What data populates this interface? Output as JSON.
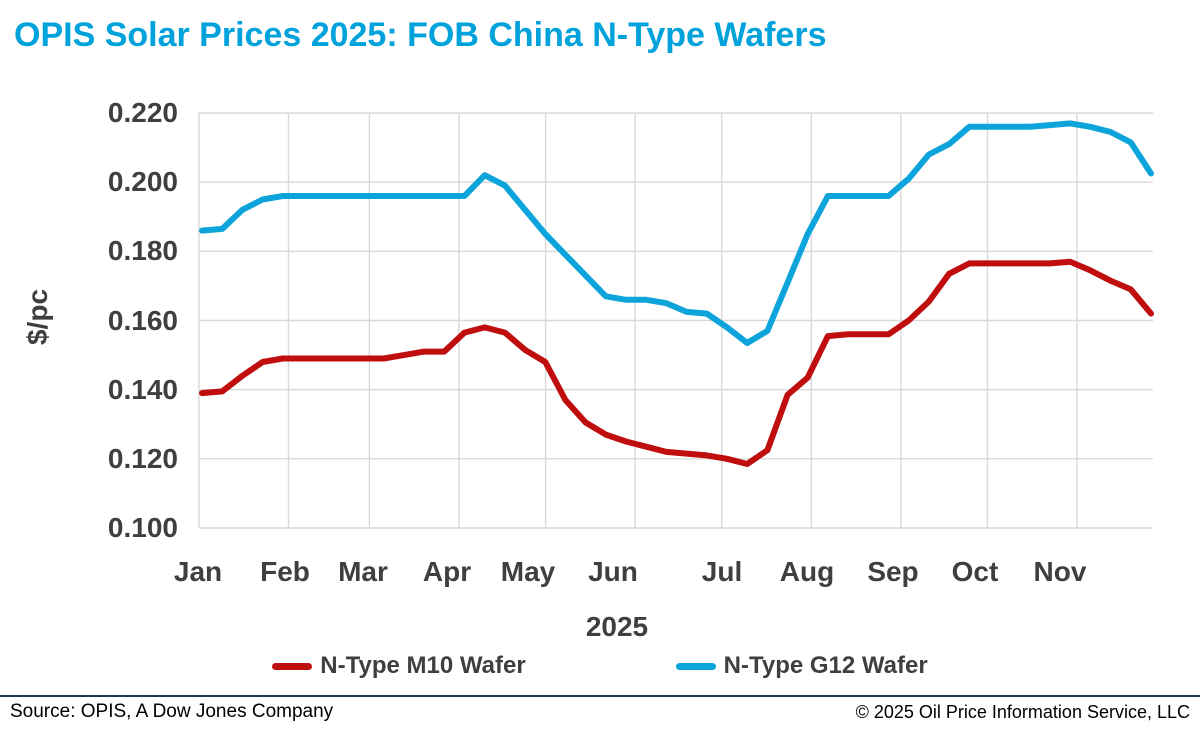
{
  "title": "OPIS Solar Prices 2025: FOB China N-Type Wafers",
  "colors": {
    "title_accent": "#00A2DC",
    "m10_red": "#C00D0D",
    "g12_blue": "#0CA4DB",
    "axis_text": "#3F3F3F",
    "gridline": "#D9D9D9",
    "footer_rule_navy": "#17375D"
  },
  "y_axis": {
    "title": "$/pc",
    "ticks": [
      "0.220",
      "0.200",
      "0.180",
      "0.160",
      "0.140",
      "0.120",
      "0.100"
    ]
  },
  "x_axis": {
    "months": [
      "Jan",
      "Feb",
      "Mar",
      "Apr",
      "May",
      "Jun",
      "Jul",
      "Aug",
      "Sep",
      "Oct",
      "Nov"
    ],
    "year_label": "2025"
  },
  "legend": [
    {
      "label": "N-Type M10 Wafer",
      "color": "#C00D0D"
    },
    {
      "label": "N-Type G12 Wafer",
      "color": "#0CA4DB"
    }
  ],
  "footer": {
    "source": "Source: OPIS, A Dow Jones Company",
    "copyright": "© 2025 Oil Price Information Service, LLC"
  },
  "chart_data": {
    "type": "line",
    "title": "OPIS Solar Prices 2025: FOB China N-Type Wafers",
    "ylabel": "$/pc",
    "xlabel": "2025",
    "ylim": [
      0.1,
      0.22
    ],
    "ytick_step": 0.02,
    "grid": true,
    "legend_position": "bottom",
    "x_frequency": "weekly",
    "x": [
      "Jan 2",
      "Jan 9",
      "Jan 16",
      "Jan 23",
      "Jan 30",
      "Feb 6",
      "Feb 13",
      "Feb 20",
      "Feb 27",
      "Mar 6",
      "Mar 13",
      "Mar 20",
      "Mar 27",
      "Apr 3",
      "Apr 10",
      "Apr 17",
      "Apr 24",
      "May 1",
      "May 8",
      "May 15",
      "May 22",
      "May 29",
      "Jun 5",
      "Jun 12",
      "Jun 19",
      "Jun 26",
      "Jul 3",
      "Jul 10",
      "Jul 17",
      "Jul 24",
      "Jul 31",
      "Aug 7",
      "Aug 14",
      "Aug 21",
      "Aug 28",
      "Sep 4",
      "Sep 11",
      "Sep 18",
      "Sep 25",
      "Oct 2",
      "Oct 9",
      "Oct 16",
      "Oct 23",
      "Oct 30",
      "Nov 6",
      "Nov 13",
      "Nov 20",
      "Nov 27"
    ],
    "series": [
      {
        "name": "N-Type M10 Wafer",
        "color": "#C00D0D",
        "values": [
          0.139,
          0.1395,
          0.144,
          0.148,
          0.149,
          0.149,
          0.149,
          0.149,
          0.149,
          0.149,
          0.15,
          0.151,
          0.151,
          0.1565,
          0.158,
          0.1565,
          0.1515,
          0.148,
          0.137,
          0.1305,
          0.127,
          0.125,
          0.1235,
          0.122,
          0.1215,
          0.121,
          0.12,
          0.1185,
          0.1225,
          0.1385,
          0.1435,
          0.1555,
          0.156,
          0.156,
          0.156,
          0.16,
          0.1655,
          0.1735,
          0.1765,
          0.1765,
          0.1765,
          0.1765,
          0.1765,
          0.177,
          0.1745,
          0.1715,
          0.169,
          0.162
        ]
      },
      {
        "name": "N-Type G12 Wafer",
        "color": "#0CA4DB",
        "values": [
          0.186,
          0.1865,
          0.192,
          0.195,
          0.196,
          0.196,
          0.196,
          0.196,
          0.196,
          0.196,
          0.196,
          0.196,
          0.196,
          0.196,
          0.202,
          0.199,
          0.192,
          0.185,
          0.179,
          0.173,
          0.167,
          0.166,
          0.166,
          0.165,
          0.1625,
          0.162,
          0.158,
          0.1535,
          0.157,
          0.171,
          0.185,
          0.196,
          0.196,
          0.196,
          0.196,
          0.201,
          0.208,
          0.211,
          0.216,
          0.216,
          0.216,
          0.216,
          0.2165,
          0.217,
          0.216,
          0.2145,
          0.2115,
          0.2025
        ]
      }
    ]
  }
}
